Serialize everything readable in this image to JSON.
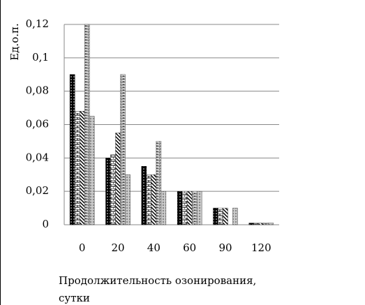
{
  "chart_data": {
    "type": "bar",
    "y_label": "Ед.о.п.",
    "x_label": "Продолжительность озонирования, сутки",
    "categories": [
      "0",
      "20",
      "40",
      "60",
      "90",
      "120"
    ],
    "series": [
      {
        "color": "#000000",
        "values": [
          0.09,
          0.04,
          0.035,
          0.02,
          0.01,
          0.001
        ]
      },
      {
        "color": "#ffffff",
        "values": [
          0.068,
          0.042,
          0.03,
          0.02,
          0.01,
          0.001
        ]
      },
      {
        "color": "#ffffff",
        "values": [
          0.068,
          0.055,
          0.03,
          0.02,
          0.01,
          0.001
        ]
      },
      {
        "color": "#ffffff",
        "values": [
          0.12,
          0.09,
          0.05,
          0.02,
          0,
          0.001
        ]
      },
      {
        "color": "#bbbbbb",
        "values": [
          0.065,
          0.03,
          0.02,
          0.02,
          0.01,
          0.001
        ]
      }
    ],
    "ylim": [
      0,
      0.12
    ],
    "yticks": [
      0,
      {
        "value": 0.02,
        "label": "0,02"
      },
      {
        "value": 0.04,
        "label": "0,04"
      },
      {
        "value": 0.06,
        "label": "0,06"
      },
      {
        "value": 0.08,
        "label": "0,08"
      },
      {
        "value": 0.1,
        "label": "0,1"
      },
      {
        "value": 0.12,
        "label": "0,12"
      }
    ],
    "grid": true
  }
}
